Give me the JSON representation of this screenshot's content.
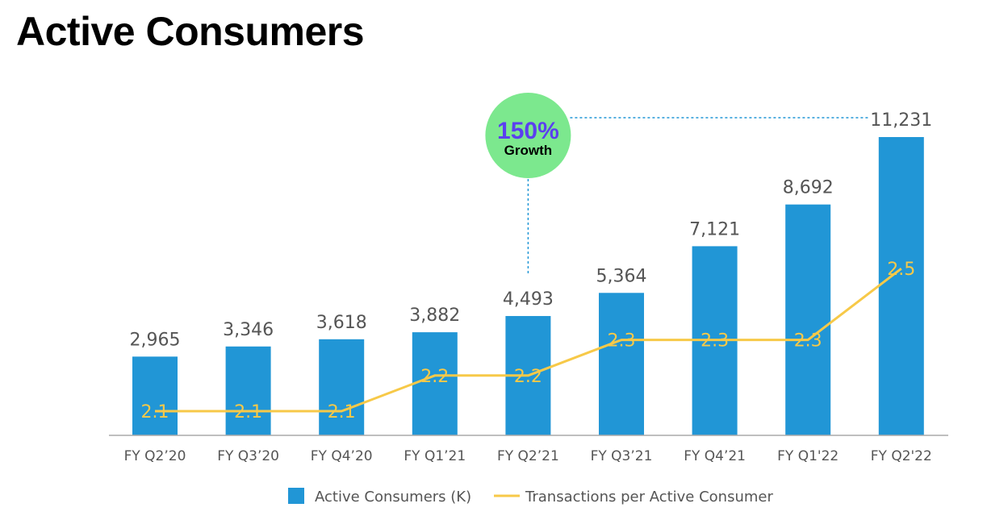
{
  "chart_data": {
    "type": "bar",
    "title": "Active Consumers",
    "categories": [
      "FY Q2’20",
      "FY Q3’20",
      "FY Q4’20",
      "FY Q1’21",
      "FY Q2’21",
      "FY Q3’21",
      "FY Q4’21",
      "FY Q1'22",
      "FY Q2'22"
    ],
    "series": [
      {
        "name": "Active Consumers (K)",
        "type": "bar",
        "color": "#2196d6",
        "values": [
          2965,
          3346,
          3618,
          3882,
          4493,
          5364,
          7121,
          8692,
          11231
        ],
        "labels": [
          "2,965",
          "3,346",
          "3,618",
          "3,882",
          "4,493",
          "5,364",
          "7,121",
          "8,692",
          "11,231"
        ]
      },
      {
        "name": "Transactions per Active Consumer",
        "type": "line",
        "color": "#f7c948",
        "values": [
          2.1,
          2.1,
          2.1,
          2.2,
          2.2,
          2.3,
          2.3,
          2.3,
          2.5
        ],
        "labels": [
          "2.1",
          "2.1",
          "2.1",
          "2.2",
          "2.2",
          "2.3",
          "2.3",
          "2.3",
          "2.5"
        ]
      }
    ],
    "annotation": {
      "value": "150%",
      "text": "Growth",
      "from_category": "FY Q2’21",
      "to_category": "FY Q2'22",
      "bubble_color": "#7ce88e",
      "value_color": "#5b3ff0"
    },
    "legend_position": "bottom",
    "grid": false
  }
}
